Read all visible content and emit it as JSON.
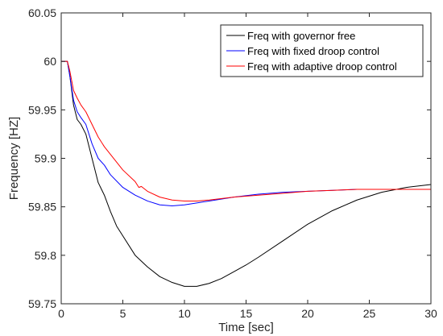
{
  "chart_data": {
    "type": "line",
    "title": "",
    "xlabel": "Time [sec]",
    "ylabel": "Frequency [HZ]",
    "xlim": [
      0,
      30
    ],
    "ylim": [
      59.75,
      60.05
    ],
    "xticks": [
      0,
      5,
      10,
      15,
      20,
      25,
      30
    ],
    "yticks": [
      59.75,
      59.8,
      59.85,
      59.9,
      59.95,
      60,
      60.05
    ],
    "xtick_labels": [
      "0",
      "5",
      "10",
      "15",
      "20",
      "25",
      "30"
    ],
    "ytick_labels": [
      "59.75",
      "59.8",
      "59.85",
      "59.9",
      "59.95",
      "60",
      "60.05"
    ],
    "grid": false,
    "legend_position": "top-right",
    "series": [
      {
        "name": "Freq with governor free",
        "color": "#000000",
        "x": [
          0,
          0.5,
          0.7,
          1.0,
          1.3,
          1.6,
          2.0,
          2.5,
          3.0,
          3.5,
          4.0,
          4.5,
          5.0,
          6.0,
          7.0,
          8.0,
          9.0,
          10.0,
          11.0,
          12.0,
          13.0,
          14.0,
          15.0,
          16.0,
          18.0,
          20.0,
          22.0,
          24.0,
          26.0,
          28.0,
          30.0
        ],
        "y": [
          60.0,
          60.0,
          59.985,
          59.955,
          59.94,
          59.935,
          59.925,
          59.9,
          59.875,
          59.862,
          59.845,
          59.83,
          59.82,
          59.8,
          59.788,
          59.778,
          59.772,
          59.768,
          59.768,
          59.771,
          59.776,
          59.783,
          59.79,
          59.798,
          59.815,
          59.832,
          59.846,
          59.857,
          59.865,
          59.87,
          59.873
        ]
      },
      {
        "name": "Freq with fixed droop control",
        "color": "#0000ff",
        "x": [
          0,
          0.5,
          0.7,
          1.0,
          1.3,
          1.6,
          2.0,
          2.5,
          3.0,
          3.5,
          4.0,
          5.0,
          6.0,
          7.0,
          8.0,
          9.0,
          10.0,
          11.0,
          12.0,
          14.0,
          16.0,
          18.0,
          20.0,
          22.0,
          24.0,
          26.0,
          28.0,
          30.0
        ],
        "y": [
          60.0,
          60.0,
          59.985,
          59.96,
          59.948,
          59.942,
          59.935,
          59.915,
          59.9,
          59.893,
          59.883,
          59.87,
          59.862,
          59.856,
          59.852,
          59.851,
          59.852,
          59.854,
          59.856,
          59.86,
          59.863,
          59.865,
          59.866,
          59.867,
          59.868,
          59.868,
          59.868,
          59.868
        ]
      },
      {
        "name": "Freq with adaptive droop control",
        "color": "#ff0000",
        "x": [
          0,
          0.5,
          0.7,
          1.0,
          1.3,
          1.6,
          2.0,
          2.5,
          3.0,
          3.5,
          4.0,
          5.0,
          6.0,
          6.3,
          6.5,
          7.0,
          8.0,
          9.0,
          10.0,
          11.0,
          12.0,
          14.0,
          16.0,
          18.0,
          20.0,
          22.0,
          24.0,
          26.0,
          28.0,
          30.0
        ],
        "y": [
          60.0,
          60.0,
          59.99,
          59.97,
          59.962,
          59.955,
          59.948,
          59.935,
          59.922,
          59.912,
          59.904,
          59.888,
          59.876,
          59.87,
          59.871,
          59.866,
          59.86,
          59.857,
          59.856,
          59.856,
          59.857,
          59.86,
          59.862,
          59.864,
          59.866,
          59.867,
          59.868,
          59.868,
          59.868,
          59.868
        ]
      }
    ]
  }
}
